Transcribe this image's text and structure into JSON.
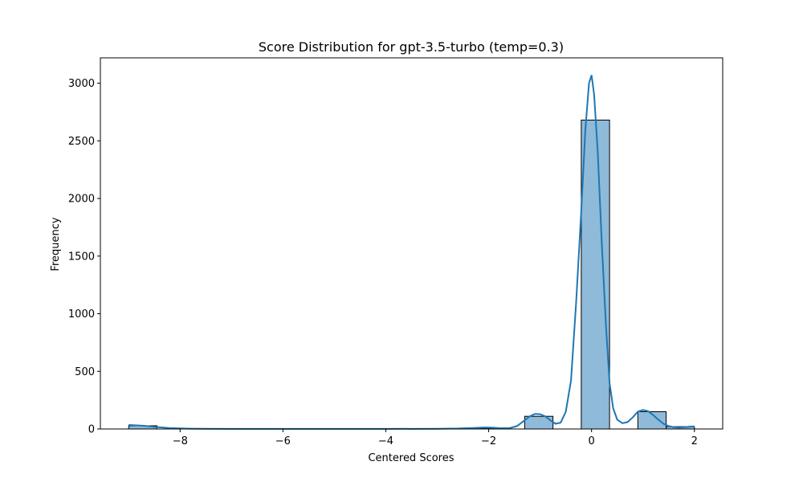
{
  "chart_data": {
    "type": "bar",
    "title": "Score Distribution for gpt-3.5-turbo (temp=0.3)",
    "xlabel": "Centered Scores",
    "ylabel": "Frequency",
    "xlim": [
      -9.55,
      2.55
    ],
    "ylim": [
      0,
      3220
    ],
    "x_ticks": [
      -8,
      -6,
      -4,
      -2,
      0,
      2
    ],
    "x_tick_labels": [
      "−8",
      "−6",
      "−4",
      "−2",
      "0",
      "2"
    ],
    "y_ticks": [
      0,
      500,
      1000,
      1500,
      2000,
      2500,
      3000
    ],
    "y_tick_labels": [
      "0",
      "500",
      "1000",
      "1500",
      "2000",
      "2500",
      "3000"
    ],
    "bins": [
      {
        "x0": -9.0,
        "x1": -8.45,
        "value": 28
      },
      {
        "x0": -2.4,
        "x1": -1.85,
        "value": 6
      },
      {
        "x0": -1.3,
        "x1": -0.75,
        "value": 110
      },
      {
        "x0": -0.2,
        "x1": 0.35,
        "value": 2680
      },
      {
        "x0": 0.9,
        "x1": 1.45,
        "value": 150
      },
      {
        "x0": 1.45,
        "x1": 2.0,
        "value": 20
      }
    ],
    "kde": [
      [
        -9.0,
        35
      ],
      [
        -8.7,
        28
      ],
      [
        -8.5,
        18
      ],
      [
        -8.2,
        8
      ],
      [
        -7.8,
        3
      ],
      [
        -7.0,
        1
      ],
      [
        -6.0,
        1
      ],
      [
        -5.0,
        1
      ],
      [
        -4.0,
        1
      ],
      [
        -3.0,
        2
      ],
      [
        -2.6,
        4
      ],
      [
        -2.3,
        9
      ],
      [
        -2.1,
        13
      ],
      [
        -1.95,
        12
      ],
      [
        -1.8,
        8
      ],
      [
        -1.6,
        7
      ],
      [
        -1.45,
        25
      ],
      [
        -1.3,
        75
      ],
      [
        -1.2,
        110
      ],
      [
        -1.1,
        130
      ],
      [
        -1.0,
        128
      ],
      [
        -0.9,
        110
      ],
      [
        -0.8,
        75
      ],
      [
        -0.7,
        45
      ],
      [
        -0.6,
        55
      ],
      [
        -0.5,
        150
      ],
      [
        -0.4,
        420
      ],
      [
        -0.3,
        1100
      ],
      [
        -0.2,
        1900
      ],
      [
        -0.12,
        2600
      ],
      [
        -0.05,
        3000
      ],
      [
        0.0,
        3070
      ],
      [
        0.05,
        2900
      ],
      [
        0.12,
        2400
      ],
      [
        0.2,
        1600
      ],
      [
        0.28,
        900
      ],
      [
        0.35,
        400
      ],
      [
        0.42,
        180
      ],
      [
        0.5,
        80
      ],
      [
        0.6,
        50
      ],
      [
        0.7,
        60
      ],
      [
        0.8,
        100
      ],
      [
        0.9,
        150
      ],
      [
        1.0,
        165
      ],
      [
        1.1,
        155
      ],
      [
        1.2,
        120
      ],
      [
        1.3,
        80
      ],
      [
        1.4,
        45
      ],
      [
        1.5,
        25
      ],
      [
        1.6,
        15
      ],
      [
        1.7,
        12
      ],
      [
        1.8,
        15
      ],
      [
        1.9,
        20
      ],
      [
        2.0,
        22
      ]
    ],
    "colors": {
      "bar_fill": "#8fbad9",
      "bar_edge": "#000000",
      "kde_line": "#1f77b4",
      "axis": "#000000"
    },
    "grid": false
  }
}
